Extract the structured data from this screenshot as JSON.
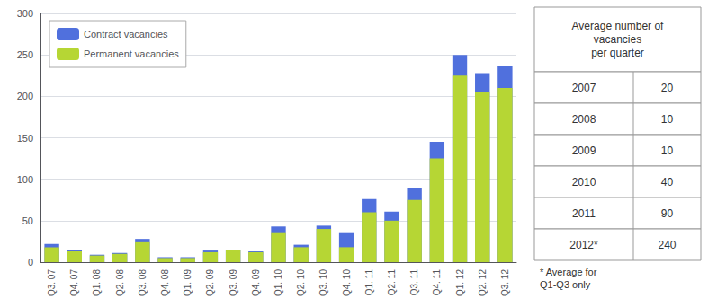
{
  "chart_data": {
    "type": "bar",
    "categories": [
      "Q3. 07",
      "Q4. 07",
      "Q1. 08",
      "Q2. 08",
      "Q3. 08",
      "Q4. 08",
      "Q1. 09",
      "Q2. 09",
      "Q3. 09",
      "Q4. 09",
      "Q1. 10",
      "Q2. 10",
      "Q3. 10",
      "Q4. 10",
      "Q1. 11",
      "Q2. 11",
      "Q3. 11",
      "Q4. 11",
      "Q1. 12",
      "Q2. 12",
      "Q3. 12"
    ],
    "series": [
      {
        "name": "Contract vacancies",
        "values": [
          22,
          15,
          9,
          11,
          28,
          6,
          6,
          14,
          15,
          13,
          43,
          21,
          44,
          35,
          76,
          61,
          90,
          145,
          250,
          228,
          237
        ]
      },
      {
        "name": "Permanent vacancies",
        "values": [
          18,
          13,
          8,
          10,
          24,
          5,
          5,
          12,
          14,
          12,
          35,
          18,
          40,
          18,
          60,
          50,
          75,
          125,
          225,
          205,
          210
        ]
      }
    ],
    "ylim": [
      0,
      300
    ],
    "yticks": [
      0,
      50,
      100,
      150,
      200,
      250,
      300
    ],
    "grid": true,
    "legend": "upper left",
    "table": {
      "header": "Average number of\nvacancies\nper quarter",
      "rows": [
        [
          "2007",
          20
        ],
        [
          "2008",
          10
        ],
        [
          "2009",
          10
        ],
        [
          "2010",
          40
        ],
        [
          "2011",
          90
        ],
        [
          "2012*",
          240
        ]
      ]
    },
    "footnote": "* Average for\nQ1-Q3 only"
  }
}
